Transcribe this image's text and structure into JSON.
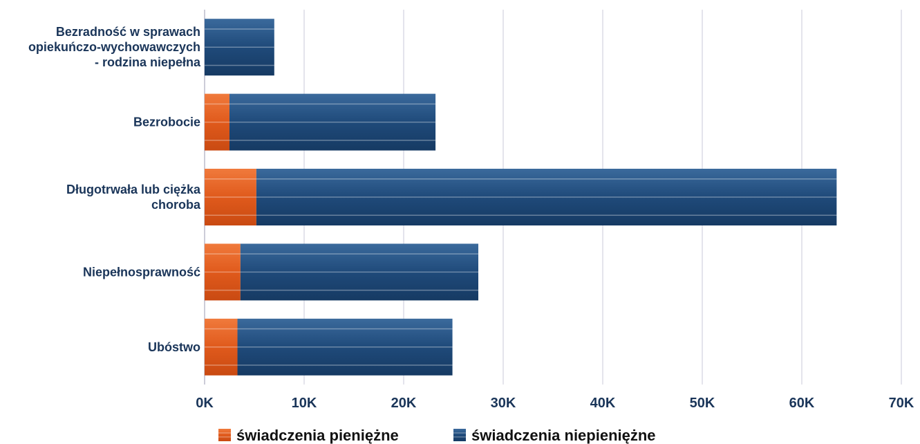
{
  "chart_data": {
    "type": "bar",
    "orientation": "horizontal",
    "stacked": true,
    "categories": [
      [
        "Bezradność w sprawach",
        "opiekuńczo-wychowawczych",
        "- rodzina niepełna"
      ],
      [
        "Bezrobocie"
      ],
      [
        "Długotrwała lub ciężka",
        "choroba"
      ],
      [
        "Niepełnosprawność"
      ],
      [
        "Ubóstwo"
      ]
    ],
    "series": [
      {
        "name": "świadczenia pieniężne",
        "color": "#e05a1c",
        "values": [
          0,
          2500,
          5200,
          3600,
          3300
        ]
      },
      {
        "name": "świadczenia niepieniężne",
        "color": "#1f4a7a",
        "values": [
          7000,
          20700,
          58300,
          23900,
          21600
        ]
      }
    ],
    "xlim": [
      0,
      70000
    ],
    "xticks": [
      0,
      10000,
      20000,
      30000,
      40000,
      50000,
      60000,
      70000
    ],
    "xtick_labels": [
      "0K",
      "10K",
      "20K",
      "30K",
      "40K",
      "50K",
      "60K",
      "70K"
    ],
    "grid": true,
    "legend_position": "bottom"
  }
}
